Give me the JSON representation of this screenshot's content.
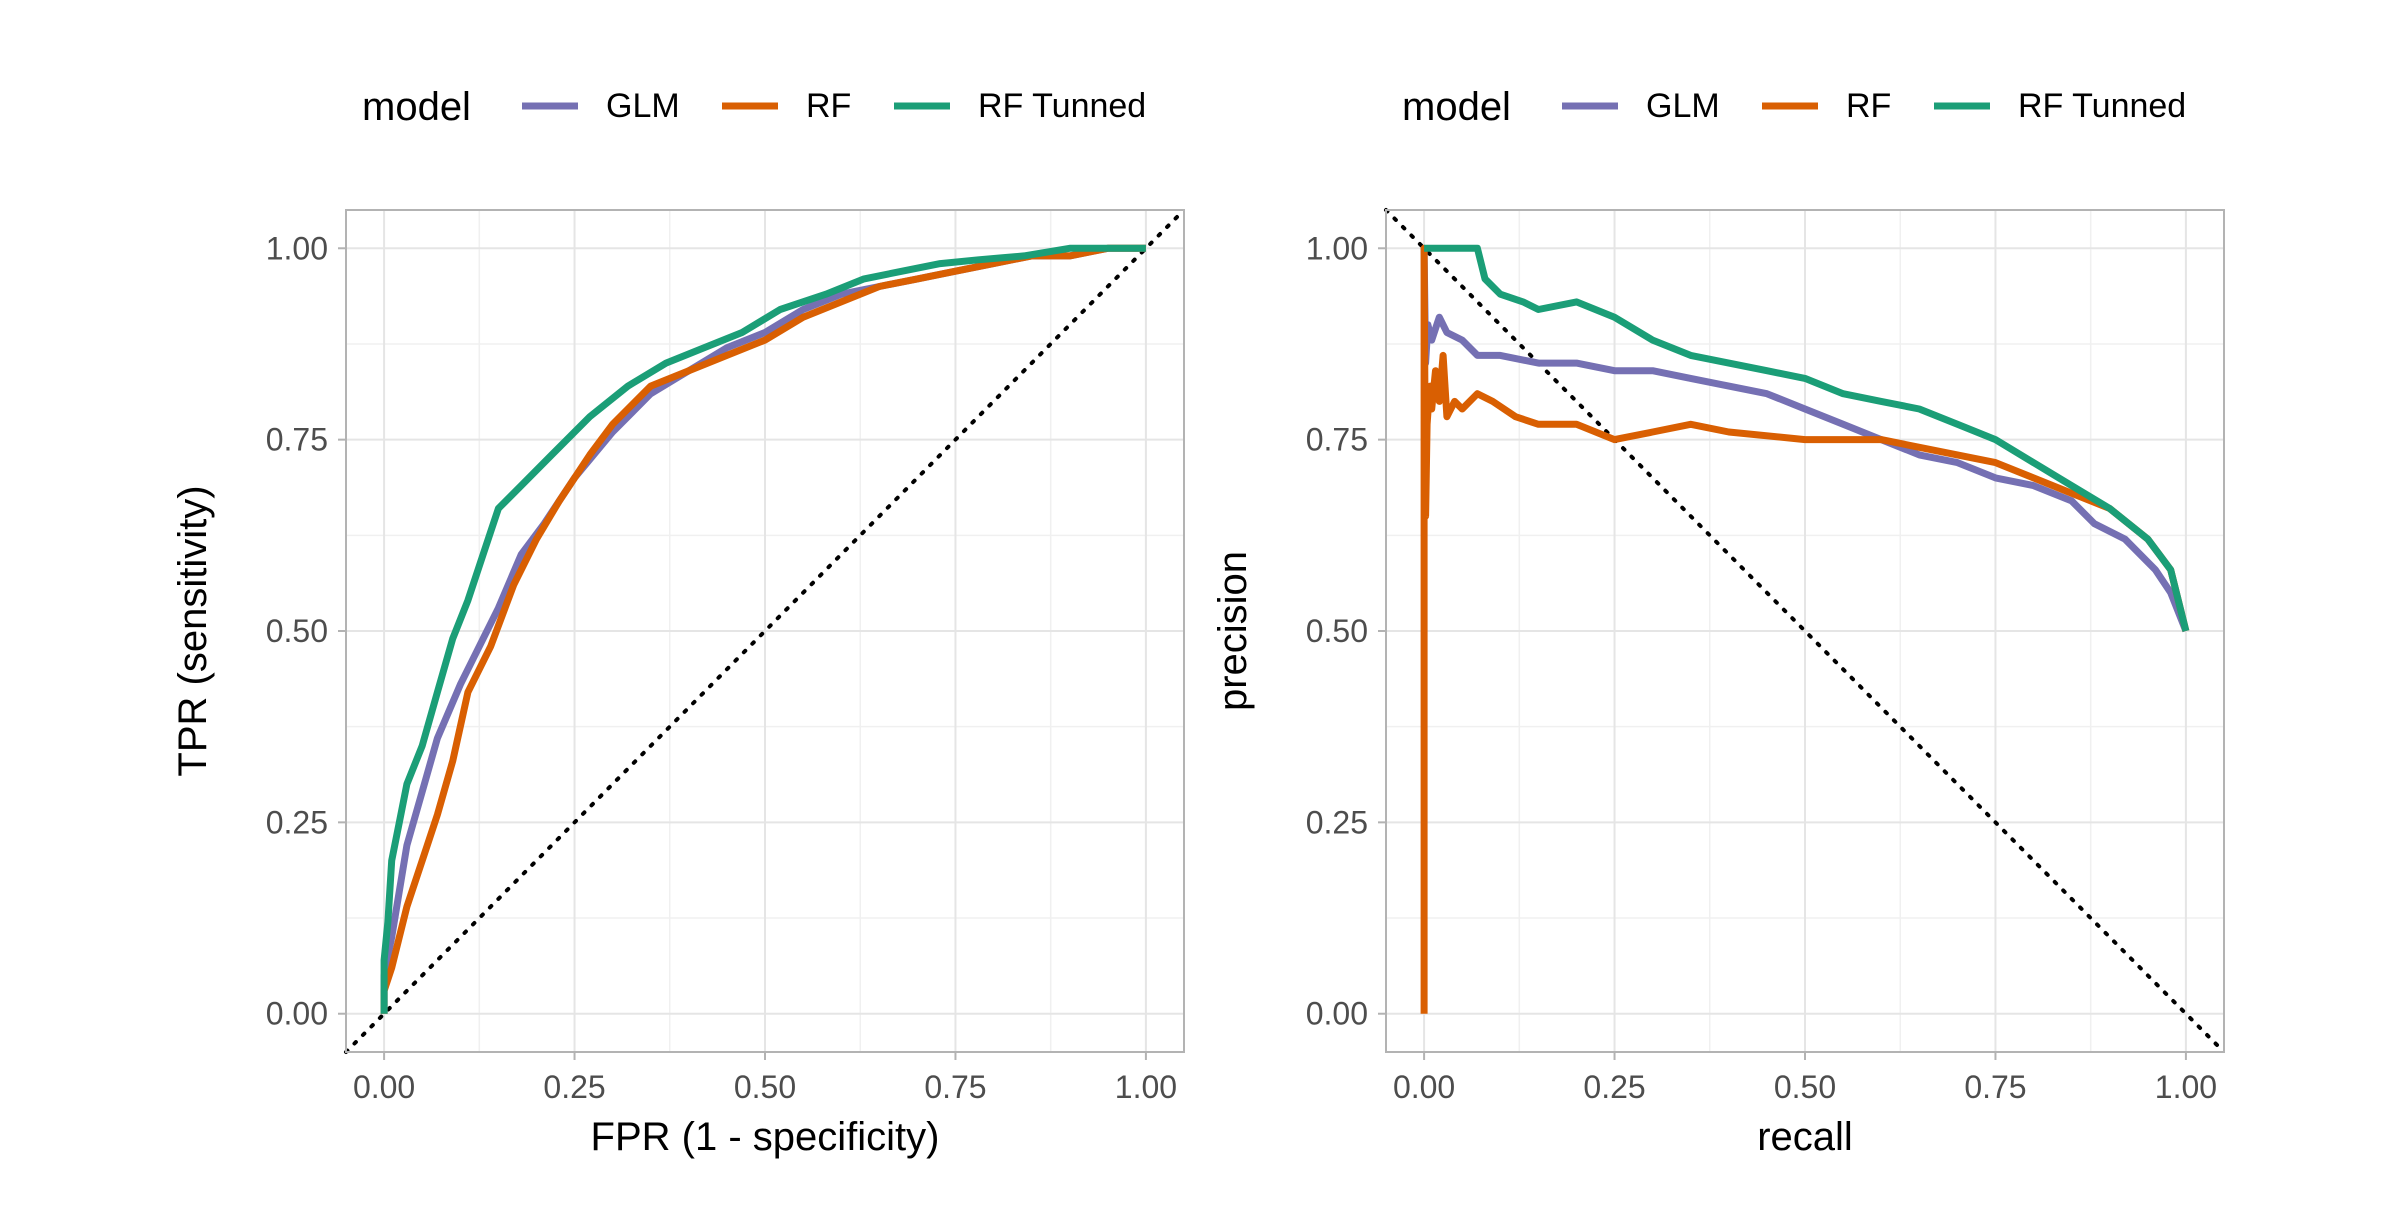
{
  "colors": {
    "GLM": "#7570B3",
    "RF": "#D95F02",
    "RF Tunned": "#1B9E77",
    "reference_line": "#000000",
    "grid_major": "#E5E5E5",
    "grid_minor": "#F0F0F0",
    "panel_border": "#B3B3B3",
    "tick_label": "#4D4D4D"
  },
  "chart_data": [
    {
      "type": "line",
      "panel": "roc",
      "legend": {
        "title": "model",
        "position": "top",
        "entries": [
          "GLM",
          "RF",
          "RF Tunned"
        ]
      },
      "xlabel": "FPR (1 - specificity)",
      "ylabel": "TPR (sensitivity)",
      "xlim": [
        -0.05,
        1.05
      ],
      "ylim": [
        -0.05,
        1.05
      ],
      "xticks": [
        "0.00",
        "0.25",
        "0.50",
        "0.75",
        "1.00"
      ],
      "yticks": [
        "0.00",
        "0.25",
        "0.50",
        "0.75",
        "1.00"
      ],
      "grid": true,
      "reference_line": {
        "style": "dotted",
        "from": [
          0,
          0
        ],
        "to": [
          1,
          1
        ]
      },
      "series": [
        {
          "name": "GLM",
          "x": [
            0,
            0,
            0.01,
            0.02,
            0.03,
            0.05,
            0.07,
            0.1,
            0.12,
            0.15,
            0.18,
            0.21,
            0.25,
            0.3,
            0.35,
            0.4,
            0.45,
            0.5,
            0.55,
            0.6,
            0.65,
            0.7,
            0.75,
            0.8,
            0.85,
            0.9,
            0.95,
            1.0
          ],
          "y": [
            0,
            0.05,
            0.1,
            0.16,
            0.22,
            0.29,
            0.36,
            0.43,
            0.47,
            0.53,
            0.6,
            0.64,
            0.7,
            0.76,
            0.81,
            0.84,
            0.87,
            0.89,
            0.92,
            0.94,
            0.95,
            0.96,
            0.97,
            0.98,
            0.99,
            0.99,
            1.0,
            1.0
          ]
        },
        {
          "name": "RF",
          "x": [
            0,
            0,
            0.01,
            0.02,
            0.03,
            0.05,
            0.07,
            0.09,
            0.11,
            0.14,
            0.17,
            0.2,
            0.23,
            0.27,
            0.3,
            0.35,
            0.4,
            0.45,
            0.5,
            0.55,
            0.6,
            0.65,
            0.7,
            0.75,
            0.8,
            0.85,
            0.9,
            0.95,
            1.0
          ],
          "y": [
            0,
            0.03,
            0.06,
            0.1,
            0.14,
            0.2,
            0.26,
            0.33,
            0.42,
            0.48,
            0.56,
            0.62,
            0.67,
            0.73,
            0.77,
            0.82,
            0.84,
            0.86,
            0.88,
            0.91,
            0.93,
            0.95,
            0.96,
            0.97,
            0.98,
            0.99,
            0.99,
            1.0,
            1.0
          ]
        },
        {
          "name": "RF Tunned",
          "x": [
            0,
            0,
            0.005,
            0.01,
            0.02,
            0.03,
            0.05,
            0.07,
            0.09,
            0.11,
            0.13,
            0.15,
            0.18,
            0.22,
            0.27,
            0.32,
            0.37,
            0.42,
            0.47,
            0.52,
            0.58,
            0.63,
            0.68,
            0.73,
            0.78,
            0.84,
            0.9,
            0.95,
            1.0
          ],
          "y": [
            0,
            0.07,
            0.12,
            0.2,
            0.25,
            0.3,
            0.35,
            0.42,
            0.49,
            0.54,
            0.6,
            0.66,
            0.69,
            0.73,
            0.78,
            0.82,
            0.85,
            0.87,
            0.89,
            0.92,
            0.94,
            0.96,
            0.97,
            0.98,
            0.985,
            0.99,
            1.0,
            1.0,
            1.0
          ]
        }
      ]
    },
    {
      "type": "line",
      "panel": "precision-recall",
      "legend": {
        "title": "model",
        "position": "top",
        "entries": [
          "GLM",
          "RF",
          "RF Tunned"
        ]
      },
      "xlabel": "recall",
      "ylabel": "precision",
      "xlim": [
        -0.05,
        1.05
      ],
      "ylim": [
        -0.05,
        1.05
      ],
      "xticks": [
        "0.00",
        "0.25",
        "0.50",
        "0.75",
        "1.00"
      ],
      "yticks": [
        "0.00",
        "0.25",
        "0.50",
        "0.75",
        "1.00"
      ],
      "grid": true,
      "reference_line": {
        "style": "dotted",
        "from": [
          0,
          1
        ],
        "to": [
          1,
          0
        ]
      },
      "series": [
        {
          "name": "GLM",
          "x": [
            0,
            0.002,
            0.005,
            0.01,
            0.02,
            0.03,
            0.05,
            0.07,
            0.1,
            0.15,
            0.2,
            0.25,
            0.3,
            0.35,
            0.4,
            0.45,
            0.5,
            0.55,
            0.6,
            0.65,
            0.7,
            0.75,
            0.8,
            0.85,
            0.88,
            0.92,
            0.96,
            0.98,
            1.0
          ],
          "y": [
            1.0,
            0.85,
            0.9,
            0.88,
            0.91,
            0.89,
            0.88,
            0.86,
            0.86,
            0.85,
            0.85,
            0.84,
            0.84,
            0.83,
            0.82,
            0.81,
            0.79,
            0.77,
            0.75,
            0.73,
            0.72,
            0.7,
            0.69,
            0.67,
            0.64,
            0.62,
            0.58,
            0.55,
            0.5
          ]
        },
        {
          "name": "RF",
          "x": [
            0,
            0,
            0.002,
            0.004,
            0.006,
            0.008,
            0.01,
            0.015,
            0.02,
            0.025,
            0.03,
            0.04,
            0.05,
            0.07,
            0.09,
            0.12,
            0.15,
            0.2,
            0.25,
            0.3,
            0.35,
            0.4,
            0.5,
            0.6,
            0.65,
            0.7,
            0.75,
            0.8,
            0.85,
            0.9,
            0.95,
            0.98,
            1.0
          ],
          "y": [
            0,
            1.0,
            0.65,
            0.77,
            0.8,
            0.82,
            0.79,
            0.84,
            0.8,
            0.86,
            0.78,
            0.8,
            0.79,
            0.81,
            0.8,
            0.78,
            0.77,
            0.77,
            0.75,
            0.76,
            0.77,
            0.76,
            0.75,
            0.75,
            0.74,
            0.73,
            0.72,
            0.7,
            0.68,
            0.66,
            0.62,
            0.58,
            0.5
          ]
        },
        {
          "name": "RF Tunned",
          "x": [
            0,
            0.002,
            0.005,
            0.01,
            0.03,
            0.05,
            0.07,
            0.08,
            0.1,
            0.13,
            0.15,
            0.2,
            0.25,
            0.3,
            0.35,
            0.4,
            0.45,
            0.5,
            0.55,
            0.6,
            0.65,
            0.7,
            0.75,
            0.8,
            0.85,
            0.9,
            0.95,
            0.98,
            1.0
          ],
          "y": [
            1.0,
            1.0,
            1.0,
            1.0,
            1.0,
            1.0,
            1.0,
            0.96,
            0.94,
            0.93,
            0.92,
            0.93,
            0.91,
            0.88,
            0.86,
            0.85,
            0.84,
            0.83,
            0.81,
            0.8,
            0.79,
            0.77,
            0.75,
            0.72,
            0.69,
            0.66,
            0.62,
            0.58,
            0.5
          ]
        }
      ]
    }
  ]
}
